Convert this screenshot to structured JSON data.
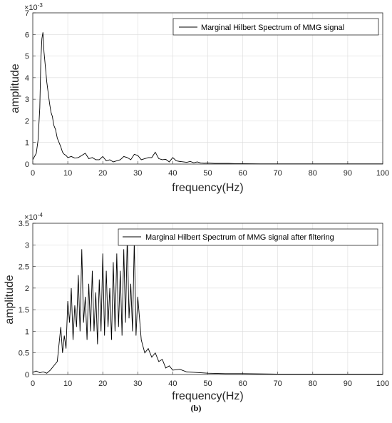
{
  "panel_label": "(b)",
  "chart_data": [
    {
      "type": "line",
      "xlabel": "frequency(Hz)",
      "ylabel": "amplitude",
      "xlim": [
        0,
        100
      ],
      "ylim": [
        0,
        0.007
      ],
      "x_ticks": [
        0,
        10,
        20,
        30,
        40,
        50,
        60,
        70,
        80,
        90,
        100
      ],
      "y_tick_labels": [
        "0",
        "1",
        "2",
        "3",
        "4",
        "5",
        "6",
        "7"
      ],
      "y_tick_values": [
        0,
        0.001,
        0.002,
        0.003,
        0.004,
        0.005,
        0.006,
        0.007
      ],
      "y_exponent": "×10",
      "y_exponent_power": "-3",
      "grid": true,
      "legend_position": "top-right",
      "series": [
        {
          "name": "Marginal Hilbert Spectrum of MMG signal",
          "color": "#000000",
          "x": [
            0,
            0.5,
            1,
            1.5,
            2,
            2.3,
            2.6,
            2.9,
            3.2,
            3.6,
            4,
            4.4,
            4.8,
            5.2,
            5.6,
            6,
            6.5,
            7,
            7.5,
            8,
            8.5,
            9,
            9.5,
            10,
            11,
            12,
            13,
            14,
            15,
            16,
            17,
            18,
            19,
            20,
            21,
            22,
            23,
            24,
            25,
            26,
            27,
            28,
            29,
            30,
            31,
            32,
            33,
            34,
            35,
            36,
            37,
            38,
            39,
            40,
            41,
            42,
            43,
            44,
            45,
            46,
            47,
            48,
            49,
            50,
            52,
            54,
            56,
            58,
            60,
            65,
            70,
            75,
            80,
            85,
            90,
            95,
            100
          ],
          "y": [
            0.0002,
            0.00035,
            0.0005,
            0.0011,
            0.0026,
            0.0048,
            0.0058,
            0.0061,
            0.0052,
            0.0045,
            0.0038,
            0.0033,
            0.0028,
            0.0024,
            0.0022,
            0.0018,
            0.0016,
            0.0012,
            0.001,
            0.0008,
            0.00055,
            0.00045,
            0.0004,
            0.0003,
            0.00035,
            0.00028,
            0.0003,
            0.0004,
            0.0005,
            0.00025,
            0.0003,
            0.0002,
            0.0002,
            0.00035,
            0.00015,
            0.0002,
            0.0001,
            0.00015,
            0.0002,
            0.00035,
            0.0003,
            0.0002,
            0.00045,
            0.0004,
            0.0002,
            0.00025,
            0.0003,
            0.0003,
            0.00055,
            0.00025,
            0.0002,
            0.00022,
            0.0001,
            0.0003,
            0.00015,
            0.00012,
            0.0001,
            8e-05,
            0.00012,
            6e-05,
            0.0001,
            5e-05,
            4e-05,
            5e-05,
            3e-05,
            3e-05,
            3e-05,
            2e-05,
            2e-05,
            1e-05,
            1e-05,
            1e-05,
            1e-05,
            1e-05,
            1e-05,
            1e-05,
            1e-05
          ]
        }
      ]
    },
    {
      "type": "line",
      "xlabel": "frequency(Hz)",
      "ylabel": "amplitude",
      "xlim": [
        0,
        100
      ],
      "ylim": [
        0,
        0.00035
      ],
      "x_ticks": [
        0,
        10,
        20,
        30,
        40,
        50,
        60,
        70,
        80,
        90,
        100
      ],
      "y_tick_labels": [
        "0",
        "0.5",
        "1",
        "1.5",
        "2",
        "2.5",
        "3",
        "3.5"
      ],
      "y_tick_values": [
        0,
        5e-05,
        0.0001,
        0.00015,
        0.0002,
        0.00025,
        0.0003,
        0.00035
      ],
      "y_exponent": "×10",
      "y_exponent_power": "-4",
      "grid": true,
      "legend_position": "top-right",
      "series": [
        {
          "name": "Marginal Hilbert Spectrum of MMG signal after filtering",
          "color": "#000000",
          "x": [
            0,
            1,
            2,
            3,
            4,
            5,
            6,
            7,
            7.5,
            8,
            8.5,
            9,
            9.5,
            10,
            10.5,
            11,
            11.5,
            12,
            12.5,
            13,
            13.5,
            14,
            14.5,
            15,
            15.5,
            16,
            16.5,
            17,
            17.5,
            18,
            18.5,
            19,
            19.5,
            20,
            20.5,
            21,
            21.5,
            22,
            22.5,
            23,
            23.5,
            24,
            24.5,
            25,
            25.5,
            26,
            26.5,
            27,
            27.5,
            28,
            28.5,
            29,
            29.5,
            30,
            31,
            32,
            33,
            34,
            35,
            36,
            37,
            38,
            39,
            40,
            42,
            44,
            46,
            48,
            50,
            55,
            60,
            70,
            80,
            90,
            100
          ],
          "y": [
            5e-06,
            8e-06,
            4e-06,
            6e-06,
            3e-06,
            1e-05,
            2e-05,
            3e-05,
            7e-05,
            0.00011,
            5e-05,
            9e-05,
            6e-05,
            0.00017,
            0.00012,
            0.0002,
            8e-05,
            0.00016,
            0.00011,
            0.00023,
            0.0001,
            0.00029,
            0.00012,
            0.00018,
            8e-05,
            0.00021,
            0.0001,
            0.00024,
            0.0001,
            0.00019,
            7e-05,
            0.00022,
            0.0001,
            0.00028,
            9e-05,
            0.00024,
            0.00011,
            0.0002,
            8e-05,
            0.00026,
            0.0001,
            0.00028,
            0.00011,
            0.00024,
            9e-05,
            0.00029,
            0.00012,
            0.00032,
            0.00013,
            0.00021,
            0.0001,
            0.00031,
            9e-05,
            0.00018,
            8e-05,
            5e-05,
            6e-05,
            4e-05,
            5e-05,
            3e-05,
            3.5e-05,
            1.5e-05,
            2e-05,
            1e-05,
            1.2e-05,
            6e-06,
            5e-06,
            4e-06,
            3e-06,
            2e-06,
            2e-06,
            1e-06,
            1e-06,
            1e-06,
            1e-06
          ]
        }
      ]
    }
  ]
}
